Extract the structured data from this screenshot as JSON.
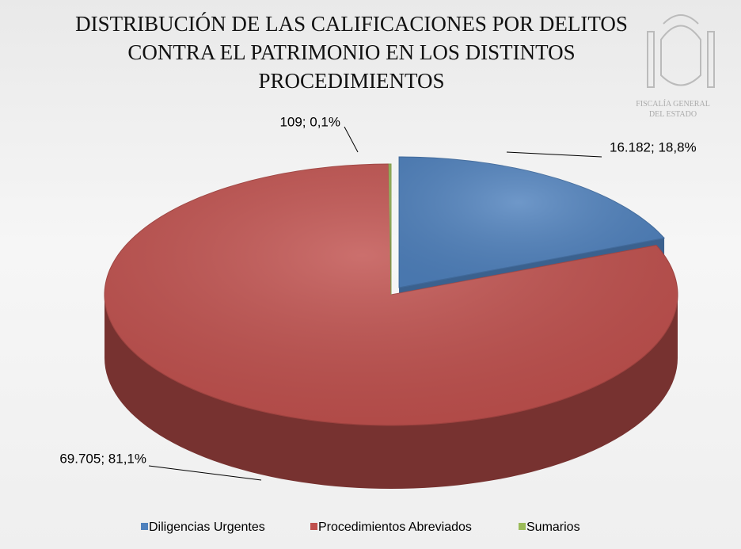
{
  "chart_data": {
    "type": "pie",
    "title": "DISTRIBUCIÓN DE LAS CALIFICACIONES POR DELITOS CONTRA EL PATRIMONIO EN LOS DISTINTOS PROCEDIMIENTOS",
    "categories": [
      "Diligencias Urgentes",
      "Procedimientos Abreviados",
      "Sumarios"
    ],
    "values": [
      16182,
      69705,
      109
    ],
    "value_labels": [
      "16.182; 18,8%",
      "69.705; 81,1%",
      "109; 0,1%"
    ],
    "colors": [
      "#4f81bd",
      "#c0504d",
      "#9bbb59"
    ],
    "legend": "bottom"
  },
  "logo": {
    "line1": "FISCALÍA GENERAL",
    "line2": "DEL ESTADO"
  }
}
